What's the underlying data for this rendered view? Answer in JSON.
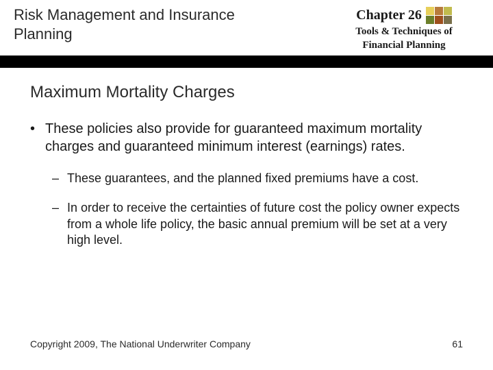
{
  "header": {
    "left_title": "Risk Management and Insurance Planning",
    "chapter_label": "Chapter 26",
    "subtitle_line1": "Tools & Techniques of",
    "subtitle_line2": "Financial Planning",
    "swatch_colors": [
      "#e7cf5a",
      "#b77b3c",
      "#c1bb4e",
      "#6b7f2a",
      "#9e4f1d",
      "#7a704b"
    ]
  },
  "slide": {
    "title": "Maximum Mortality Charges",
    "bullet1": "These policies also provide for guaranteed maximum mortality charges and guaranteed minimum interest (earnings) rates.",
    "sub1": "These guarantees, and the planned fixed premiums have a cost.",
    "sub2": "In order to receive the certainties of future cost the policy owner expects from a whole life policy, the basic annual premium will be set at a very high level."
  },
  "footer": {
    "copyright": "Copyright 2009, The National Underwriter Company",
    "page": "61"
  },
  "markers": {
    "dot": "•",
    "dash": "–"
  }
}
